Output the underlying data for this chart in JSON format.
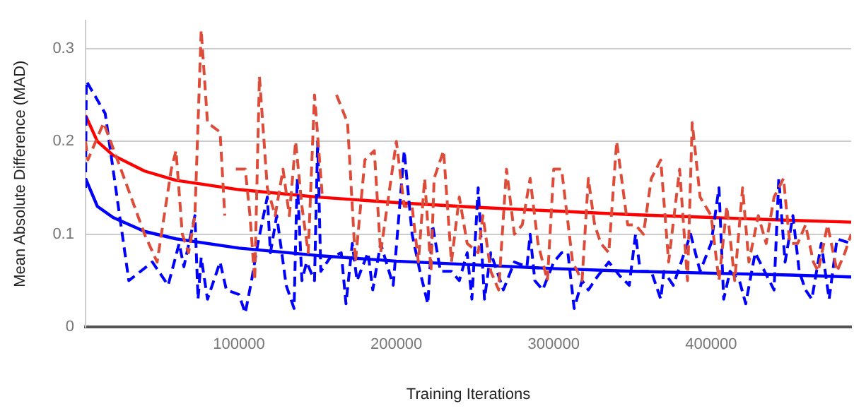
{
  "chart_data": {
    "type": "line",
    "xlabel": "Training Iterations",
    "ylabel": "Mean Absolute Difference (MAD)",
    "xlim": [
      2500,
      489000
    ],
    "xticks": [
      100000,
      200000,
      300000,
      400000
    ],
    "ylim": [
      0,
      0.33
    ],
    "yticks": [
      0,
      0.1,
      0.2,
      0.3
    ],
    "grid": "y",
    "legend": false,
    "marker": "none",
    "series": [
      {
        "color": "#dd4b39",
        "line_style": "dashed",
        "x": [
          2500,
          4000,
          14000,
          25000,
          40000,
          48000,
          57000,
          60000,
          64000,
          68000,
          72000,
          76000,
          80000,
          88000,
          91000,
          94000,
          98000,
          104000,
          107000,
          110000,
          113000,
          118000,
          123000,
          128000,
          132000,
          136000,
          140000,
          144000,
          148000,
          153000,
          157000,
          162000,
          169000,
          174000,
          180000,
          186000,
          190000,
          200000,
          205000,
          210000,
          214000,
          218000,
          222000,
          224000,
          230000,
          235000,
          240000,
          245000,
          252000,
          255000,
          260000,
          265000,
          270000,
          275000,
          280000,
          285000,
          290000,
          296000,
          300000,
          305000,
          312000,
          318000,
          322000,
          326000,
          330000,
          335000,
          340000,
          347000,
          352000,
          357000,
          362000,
          368000,
          373000,
          380000,
          385000,
          388000,
          393000,
          400000,
          405000,
          410000,
          415000,
          420000,
          424000,
          430000,
          435000,
          440000,
          446000,
          450000,
          455000,
          460000,
          465000,
          468000,
          474000,
          480000,
          485000,
          489000
        ],
        "values": [
          0.2,
          0.18,
          0.22,
          0.17,
          0.1,
          0.07,
          0.17,
          0.19,
          0.1,
          0.08,
          0.12,
          0.32,
          0.22,
          0.21,
          0.12,
          null,
          0.17,
          0.17,
          0.12,
          0.05,
          0.27,
          0.15,
          0.12,
          0.17,
          0.12,
          0.2,
          0.13,
          0.08,
          0.25,
          0.14,
          null,
          0.25,
          0.22,
          0.07,
          0.18,
          0.19,
          0.08,
          0.2,
          0.13,
          0.13,
          0.07,
          0.16,
          0.06,
          0.16,
          0.19,
          0.07,
          0.14,
          0.09,
          0.08,
          0.12,
          0.06,
          0.04,
          0.17,
          0.1,
          0.11,
          0.16,
          0.09,
          0.05,
          0.17,
          0.17,
          0.07,
          0.05,
          0.16,
          0.11,
          0.09,
          0.08,
          0.2,
          0.11,
          0.11,
          0.1,
          0.16,
          0.18,
          0.07,
          0.17,
          0.05,
          0.22,
          0.14,
          0.12,
          0.05,
          0.13,
          0.05,
          0.15,
          0.07,
          0.12,
          0.09,
          0.14,
          0.16,
          0.09,
          0.09,
          0.11,
          0.07,
          0.06,
          0.11,
          0.06,
          0.08,
          0.1
        ]
      },
      {
        "color": "#0000ff",
        "line_style": "dashed",
        "x": [
          2500,
          3000,
          15000,
          30000,
          45000,
          55000,
          62000,
          65000,
          72000,
          74000,
          76000,
          80000,
          88000,
          92000,
          100000,
          104000,
          108000,
          112000,
          118000,
          120000,
          124000,
          130000,
          135000,
          137000,
          140000,
          143000,
          148000,
          150000,
          152000,
          158000,
          165000,
          168000,
          172000,
          175000,
          182000,
          185000,
          190000,
          198000,
          205000,
          210000,
          215000,
          220000,
          223000,
          228000,
          235000,
          240000,
          245000,
          248000,
          252000,
          256000,
          260000,
          268000,
          275000,
          283000,
          285000,
          288000,
          293000,
          300000,
          305000,
          309000,
          313000,
          318000,
          322000,
          328000,
          335000,
          342000,
          348000,
          352000,
          355000,
          362000,
          368000,
          370000,
          376000,
          383000,
          387000,
          393000,
          400000,
          405000,
          408000,
          412000,
          418000,
          422000,
          428000,
          434000,
          440000,
          443000,
          447000,
          452000,
          456000,
          460000,
          464000,
          470000,
          475000,
          480000,
          489000
        ],
        "values": [
          0.15,
          0.265,
          0.23,
          0.05,
          0.07,
          0.045,
          0.09,
          0.065,
          0.12,
          0.03,
          0.075,
          0.03,
          0.07,
          0.04,
          0.035,
          0.015,
          0.05,
          0.09,
          0.14,
          0.08,
          0.12,
          0.045,
          0.02,
          0.16,
          0.05,
          0.07,
          0.05,
          0.2,
          0.06,
          0.075,
          0.08,
          0.025,
          0.09,
          0.05,
          0.08,
          0.04,
          0.09,
          0.045,
          0.19,
          0.1,
          0.06,
          0.025,
          0.11,
          0.06,
          0.06,
          0.05,
          0.08,
          0.03,
          0.15,
          0.03,
          0.08,
          0.04,
          0.07,
          0.065,
          0.1,
          0.05,
          0.04,
          0.07,
          0.08,
          0.08,
          0.02,
          0.05,
          0.04,
          0.055,
          0.07,
          0.055,
          0.045,
          0.1,
          0.06,
          0.06,
          0.03,
          0.06,
          0.045,
          0.08,
          0.1,
          0.06,
          0.09,
          0.15,
          0.03,
          0.06,
          0.05,
          0.025,
          0.08,
          0.06,
          0.04,
          0.16,
          0.07,
          0.12,
          0.06,
          0.04,
          0.03,
          0.09,
          0.03,
          0.095,
          0.09
        ]
      },
      {
        "color": "#ff0000",
        "line_style": "solid",
        "x": [
          2500,
          10000,
          20000,
          40000,
          60000,
          100000,
          150000,
          200000,
          250000,
          300000,
          350000,
          400000,
          450000,
          489000
        ],
        "values": [
          0.228,
          0.2,
          0.185,
          0.168,
          0.158,
          0.148,
          0.14,
          0.134,
          0.129,
          0.125,
          0.121,
          0.118,
          0.115,
          0.113
        ]
      },
      {
        "color": "#0000ff",
        "line_style": "solid",
        "x": [
          2500,
          10000,
          20000,
          40000,
          60000,
          100000,
          150000,
          200000,
          250000,
          300000,
          350000,
          400000,
          450000,
          489000
        ],
        "values": [
          0.16,
          0.13,
          0.118,
          0.103,
          0.095,
          0.085,
          0.077,
          0.071,
          0.067,
          0.063,
          0.06,
          0.058,
          0.056,
          0.054
        ]
      }
    ]
  }
}
